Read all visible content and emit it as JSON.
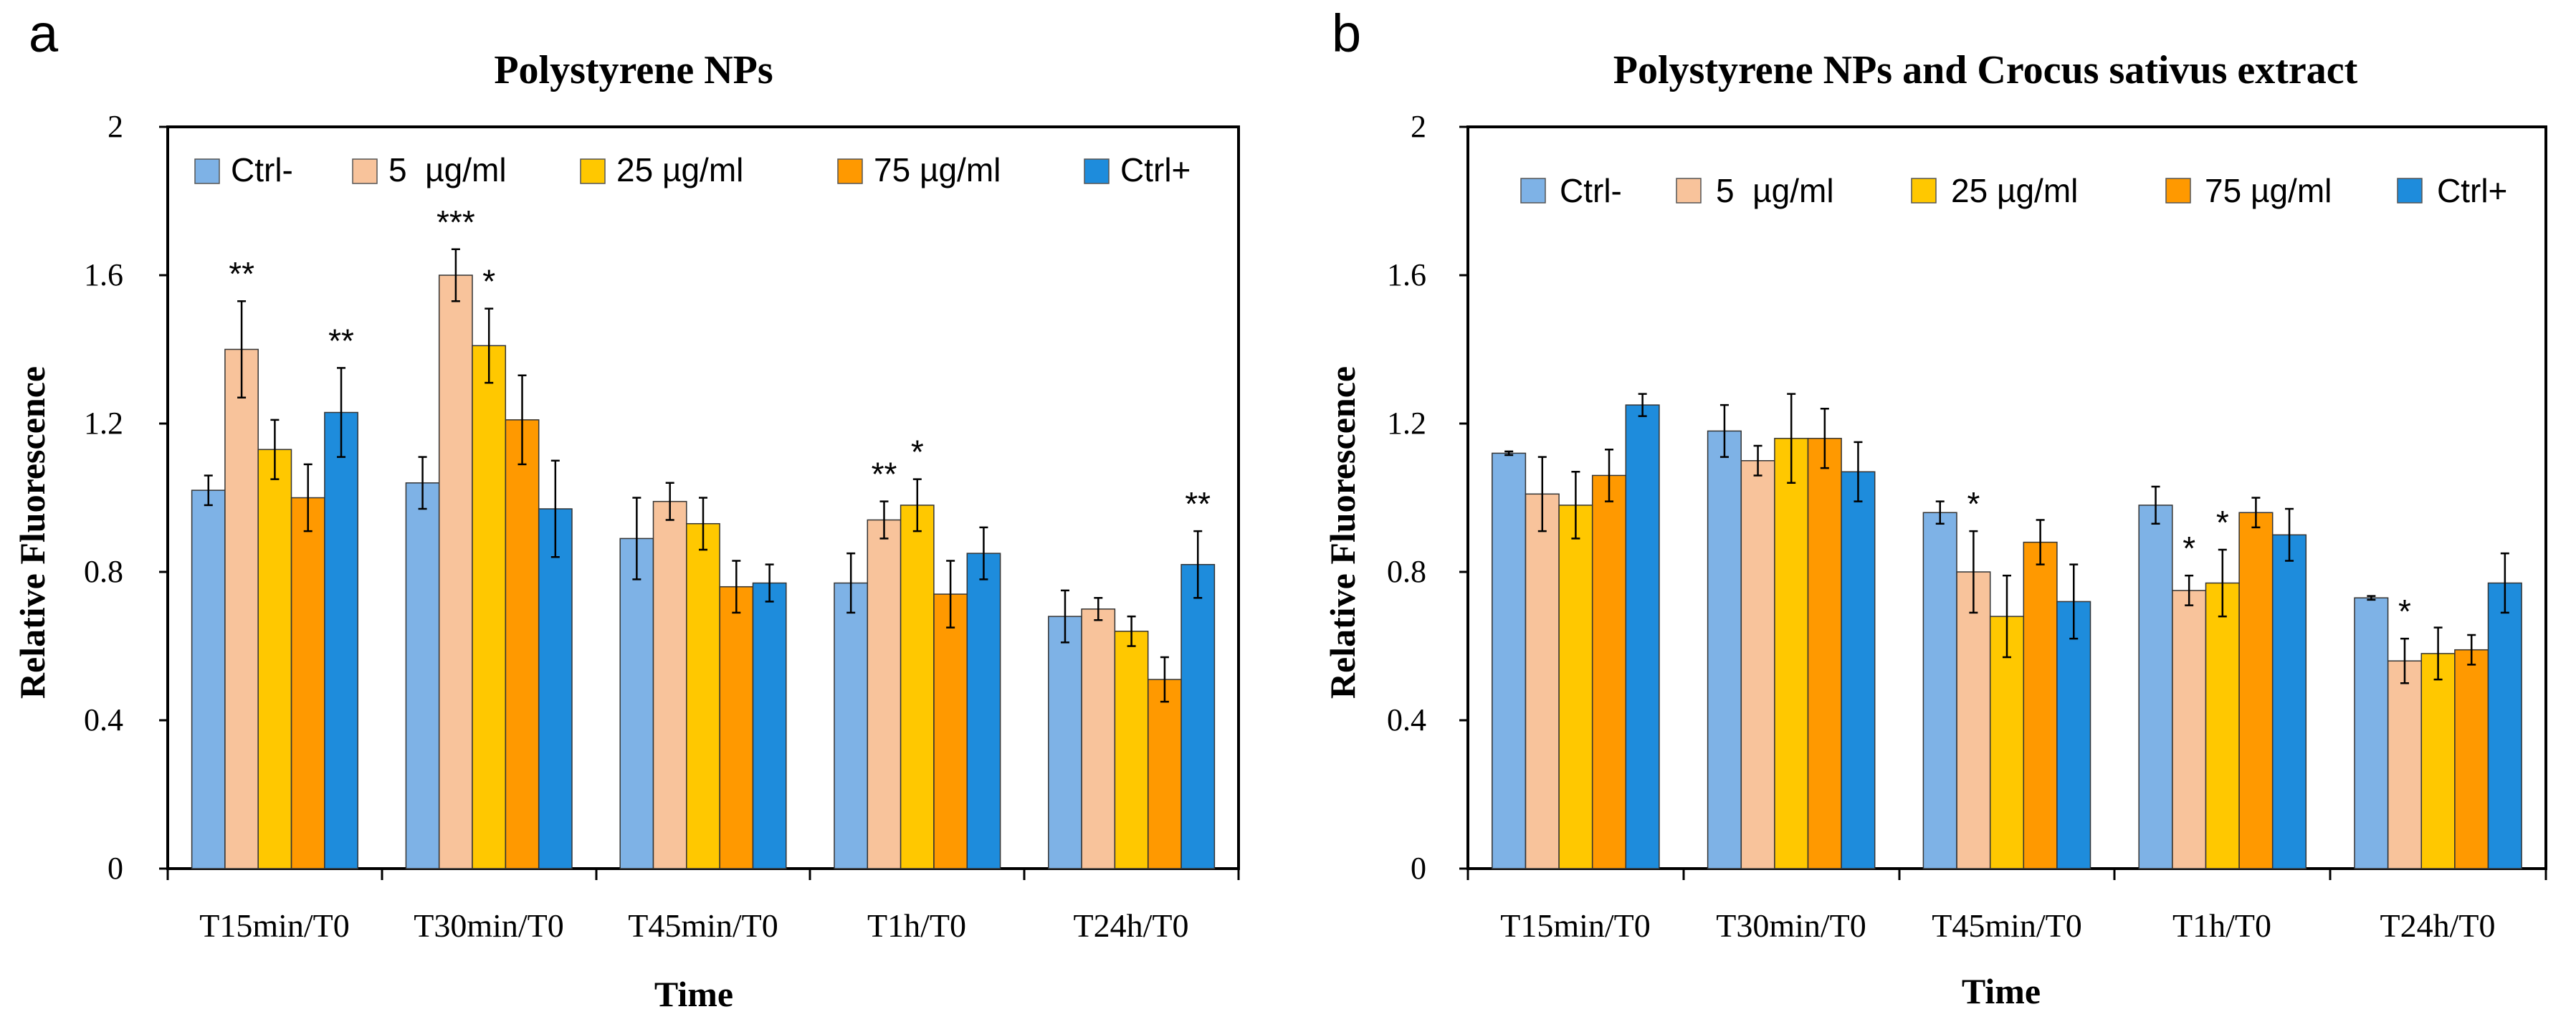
{
  "figure": {
    "panels": [
      "a",
      "b"
    ],
    "colors": {
      "Ctrl-": "#7EB2E6",
      "5  µg/ml": "#F8C39B",
      "25 µg/ml": "#FFC800",
      "75 µg/ml": "#FF9900",
      "Ctrl+": "#1E8CDC"
    }
  },
  "chart_data": [
    {
      "type": "bar",
      "panel_label": "a",
      "title": "Polystyrene NPs",
      "xlabel": "Time",
      "ylabel": "Relative Fluorescence",
      "ylim": [
        0,
        2
      ],
      "yticks": [
        0,
        0.4,
        0.8,
        1.2,
        1.6,
        2
      ],
      "ytick_labels": [
        "0",
        "0.4",
        "0.8",
        "1.2",
        "1.6",
        "2"
      ],
      "legend_position": "top",
      "categories": [
        "T15min/T0",
        "T30min/T0",
        "T45min/T0",
        "T1h/T0",
        "T24h/T0"
      ],
      "series": [
        {
          "name": "Ctrl-",
          "values": [
            1.02,
            1.04,
            0.89,
            0.77,
            0.68
          ],
          "errors": [
            0.04,
            0.07,
            0.11,
            0.08,
            0.07
          ],
          "stars": [
            "",
            "",
            "",
            "",
            ""
          ]
        },
        {
          "name": "5  µg/ml",
          "values": [
            1.4,
            1.6,
            0.99,
            0.94,
            0.7
          ],
          "errors": [
            0.13,
            0.07,
            0.05,
            0.05,
            0.03
          ],
          "stars": [
            "**",
            "***",
            "",
            "**",
            ""
          ]
        },
        {
          "name": "25 µg/ml",
          "values": [
            1.13,
            1.41,
            0.93,
            0.98,
            0.64
          ],
          "errors": [
            0.08,
            0.1,
            0.07,
            0.07,
            0.04
          ],
          "stars": [
            "",
            "*",
            "",
            "*",
            ""
          ]
        },
        {
          "name": "75 µg/ml",
          "values": [
            1.0,
            1.21,
            0.76,
            0.74,
            0.51
          ],
          "errors": [
            0.09,
            0.12,
            0.07,
            0.09,
            0.06
          ],
          "stars": [
            "",
            "",
            "",
            "",
            ""
          ]
        },
        {
          "name": "Ctrl+",
          "values": [
            1.23,
            0.97,
            0.77,
            0.85,
            0.82
          ],
          "errors": [
            0.12,
            0.13,
            0.05,
            0.07,
            0.09
          ],
          "stars": [
            "**",
            "",
            "",
            "",
            "**"
          ]
        }
      ]
    },
    {
      "type": "bar",
      "panel_label": "b",
      "title": "Polystyrene NPs and Crocus sativus extract",
      "xlabel": "Time",
      "ylabel": "Relative Fluorescence",
      "ylim": [
        0,
        2
      ],
      "yticks": [
        0,
        0.4,
        0.8,
        1.2,
        1.6,
        2
      ],
      "ytick_labels": [
        "0",
        "0.4",
        "0.8",
        "1.2",
        "1.6",
        "2"
      ],
      "legend_position": "top",
      "categories": [
        "T15min/T0",
        "T30min/T0",
        "T45min/T0",
        "T1h/T0",
        "T24h/T0"
      ],
      "series": [
        {
          "name": "Ctrl-",
          "values": [
            1.12,
            1.18,
            0.96,
            0.98,
            0.73
          ],
          "errors": [
            0.005,
            0.07,
            0.03,
            0.05,
            0.005
          ],
          "stars": [
            "",
            "",
            "",
            "",
            ""
          ]
        },
        {
          "name": "5  µg/ml",
          "values": [
            1.01,
            1.1,
            0.8,
            0.75,
            0.56
          ],
          "errors": [
            0.1,
            0.04,
            0.11,
            0.04,
            0.06
          ],
          "stars": [
            "",
            "",
            "*",
            "*",
            "*"
          ]
        },
        {
          "name": "25 µg/ml",
          "values": [
            0.98,
            1.16,
            0.68,
            0.77,
            0.58
          ],
          "errors": [
            0.09,
            0.12,
            0.11,
            0.09,
            0.07
          ],
          "stars": [
            "",
            "",
            "",
            "*",
            ""
          ]
        },
        {
          "name": "75 µg/ml",
          "values": [
            1.06,
            1.16,
            0.88,
            0.96,
            0.59
          ],
          "errors": [
            0.07,
            0.08,
            0.06,
            0.04,
            0.04
          ],
          "stars": [
            "",
            "",
            "",
            "",
            ""
          ]
        },
        {
          "name": "Ctrl+",
          "values": [
            1.25,
            1.07,
            0.72,
            0.9,
            0.77
          ],
          "errors": [
            0.03,
            0.08,
            0.1,
            0.07,
            0.08
          ],
          "stars": [
            "",
            "",
            "",
            "",
            ""
          ]
        }
      ]
    }
  ]
}
